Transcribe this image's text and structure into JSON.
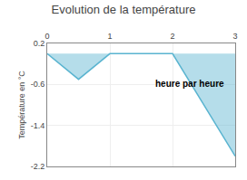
{
  "chart_data": {
    "type": "area",
    "title": "Evolution de la température",
    "ylabel": "Température en °C",
    "annotations": [
      {
        "text": "heure par heure",
        "x": 1.7,
        "y": -0.45
      }
    ],
    "x": [
      0,
      0.5,
      1,
      2,
      3
    ],
    "series": [
      {
        "color": "#5ab4d0",
        "values": [
          0.0,
          -0.5,
          0.0,
          0.0,
          -2.0
        ]
      }
    ],
    "xlim": [
      0,
      3
    ],
    "ylim": [
      -2.2,
      0.2
    ],
    "xticks": [
      0,
      1,
      2,
      3
    ],
    "yticks": [
      -2.2,
      -1.4,
      -0.6,
      0.2
    ],
    "grid": true
  }
}
